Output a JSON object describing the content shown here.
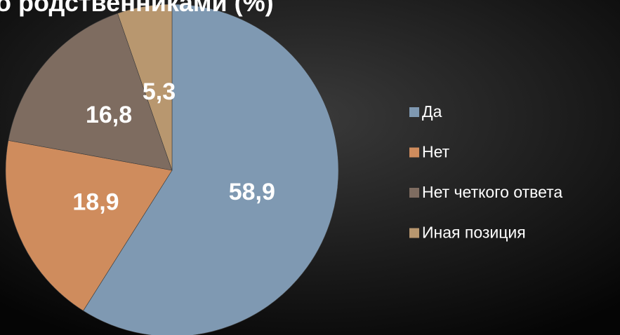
{
  "chart_data": {
    "type": "pie",
    "title": "о родственниками (%)",
    "categories": [
      "Да",
      "Нет",
      "Нет четкого ответа",
      "Иная позиция"
    ],
    "values": [
      58.9,
      18.9,
      16.8,
      5.3
    ],
    "value_labels": [
      "58,9",
      "18,9",
      "16,8",
      "5,3"
    ],
    "colors": [
      "#7f99b2",
      "#cf8c5d",
      "#7e6c60",
      "#b8976f"
    ],
    "legend": "right"
  }
}
